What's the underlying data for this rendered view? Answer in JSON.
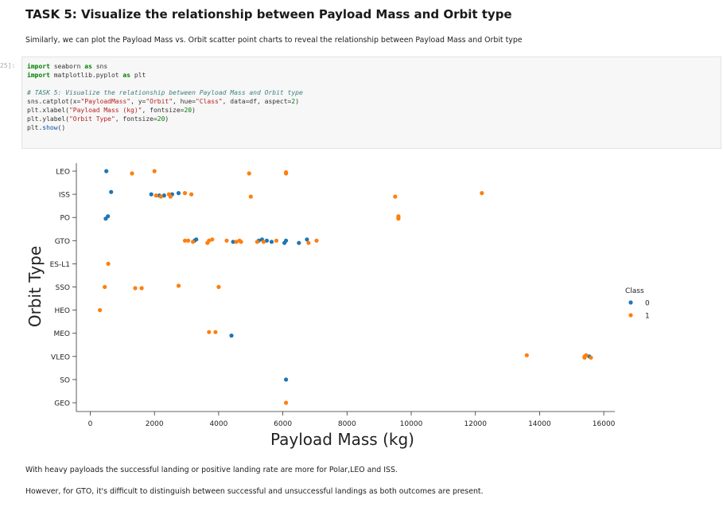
{
  "cell": {
    "heading": "TASK 5: Visualize the relationship between Payload Mass and Orbit type",
    "intro": "Similarly, we can plot the Payload Mass vs. Orbit scatter point charts to reveal the relationship between Payload Mass and Orbit type",
    "prompt": "25]:",
    "code": {
      "line1": {
        "kw1": "import",
        "mod": " seaborn ",
        "kw2": "as",
        "alias": " sns"
      },
      "line2": {
        "kw1": "import",
        "mod": " matplotlib.pyplot ",
        "kw2": "as",
        "alias": " plt"
      },
      "comment": "# TASK 5: Visualize the relationship between Payload Mass and Orbit type",
      "line4": {
        "a": "sns.catplot(x=",
        "b": "\"PayloadMass\"",
        "c": ", y=",
        "d": "\"Orbit\"",
        "e": ", hue=",
        "f": "\"Class\"",
        "g": ", data=df, aspect=",
        "h": "2",
        "i": ")"
      },
      "line5": {
        "a": "plt.xlabel(",
        "b": "\"Payload Mass (kg)\"",
        "c": ", fontsize=",
        "d": "20",
        "e": ")"
      },
      "line6": {
        "a": "plt.ylabel(",
        "b": "\"Orbit Type\"",
        "c": ", fontsize=",
        "d": "20",
        "e": ")"
      },
      "line7": {
        "a": "plt.",
        "b": "show",
        "c": "()"
      }
    },
    "conclusion1": "With heavy payloads the successful landing or positive landing rate are more for Polar,LEO and ISS.",
    "conclusion2": "However, for GTO, it's difficult to distinguish between successful and unsuccessful landings as both outcomes are present."
  },
  "chart_data": {
    "type": "scatter",
    "xlabel": "Payload Mass (kg)",
    "ylabel": "Orbit Type",
    "categories": [
      "LEO",
      "ISS",
      "PO",
      "GTO",
      "ES-L1",
      "SSO",
      "HEO",
      "MEO",
      "VLEO",
      "SO",
      "GEO"
    ],
    "xlim": [
      -400,
      16400
    ],
    "xticks": [
      0,
      2000,
      4000,
      6000,
      8000,
      10000,
      12000,
      14000,
      16000
    ],
    "legend": {
      "title": "Class",
      "placement": "right",
      "entries": [
        "0",
        "1"
      ]
    },
    "colors": {
      "0": "#1f77b4",
      "1": "#ff7f0e"
    },
    "series": [
      {
        "name": "0",
        "points": [
          [
            "LEO",
            500,
            0.0
          ],
          [
            "ISS",
            650,
            -0.1
          ],
          [
            "ISS",
            1900,
            0.0
          ],
          [
            "ISS",
            2150,
            0.05
          ],
          [
            "ISS",
            2300,
            0.05
          ],
          [
            "ISS",
            2550,
            0.0
          ],
          [
            "ISS",
            2750,
            -0.05
          ],
          [
            "PO",
            480,
            0.05
          ],
          [
            "PO",
            550,
            -0.05
          ],
          [
            "GTO",
            3250,
            0.0
          ],
          [
            "GTO",
            3300,
            -0.05
          ],
          [
            "GTO",
            4450,
            0.05
          ],
          [
            "GTO",
            5250,
            0.0
          ],
          [
            "GTO",
            5350,
            -0.05
          ],
          [
            "GTO",
            5500,
            0.0
          ],
          [
            "GTO",
            5650,
            0.05
          ],
          [
            "GTO",
            6050,
            0.1
          ],
          [
            "GTO",
            6100,
            0.0
          ],
          [
            "GTO",
            6500,
            0.1
          ],
          [
            "GTO",
            6750,
            -0.05
          ],
          [
            "MEO",
            4400,
            0.1
          ],
          [
            "VLEO",
            15550,
            0.0
          ],
          [
            "SO",
            6100,
            0.0
          ]
        ]
      },
      {
        "name": "1",
        "points": [
          [
            "LEO",
            1300,
            0.1
          ],
          [
            "LEO",
            2000,
            0.0
          ],
          [
            "LEO",
            4950,
            0.1
          ],
          [
            "LEO",
            6100,
            0.1
          ],
          [
            "LEO",
            6100,
            0.05
          ],
          [
            "ISS",
            2050,
            0.05
          ],
          [
            "ISS",
            2200,
            0.1
          ],
          [
            "ISS",
            2450,
            0.0
          ],
          [
            "ISS",
            2500,
            0.1
          ],
          [
            "ISS",
            2950,
            -0.05
          ],
          [
            "ISS",
            3150,
            0.0
          ],
          [
            "ISS",
            5000,
            0.1
          ],
          [
            "ISS",
            9500,
            0.1
          ],
          [
            "ISS",
            12200,
            -0.05
          ],
          [
            "PO",
            9600,
            0.05
          ],
          [
            "PO",
            9600,
            0.0
          ],
          [
            "PO",
            9600,
            -0.05
          ],
          [
            "GTO",
            2950,
            0.0
          ],
          [
            "GTO",
            3050,
            0.0
          ],
          [
            "GTO",
            3200,
            0.05
          ],
          [
            "GTO",
            3650,
            0.1
          ],
          [
            "GTO",
            3700,
            0.0
          ],
          [
            "GTO",
            3800,
            -0.05
          ],
          [
            "GTO",
            4250,
            0.0
          ],
          [
            "GTO",
            4550,
            0.05
          ],
          [
            "GTO",
            4650,
            0.0
          ],
          [
            "GTO",
            4700,
            0.05
          ],
          [
            "GTO",
            5200,
            0.05
          ],
          [
            "GTO",
            5400,
            0.05
          ],
          [
            "GTO",
            5800,
            0.0
          ],
          [
            "GTO",
            6800,
            0.1
          ],
          [
            "GTO",
            7050,
            0.0
          ],
          [
            "ES-L1",
            560,
            0.0
          ],
          [
            "SSO",
            450,
            0.0
          ],
          [
            "SSO",
            1400,
            0.05
          ],
          [
            "SSO",
            1600,
            0.05
          ],
          [
            "SSO",
            2750,
            -0.05
          ],
          [
            "SSO",
            4000,
            0.0
          ],
          [
            "HEO",
            300,
            0.0
          ],
          [
            "MEO",
            3700,
            -0.05
          ],
          [
            "MEO",
            3900,
            -0.05
          ],
          [
            "VLEO",
            13600,
            -0.05
          ],
          [
            "VLEO",
            15400,
            0.05
          ],
          [
            "VLEO",
            15400,
            0.0
          ],
          [
            "VLEO",
            15450,
            -0.05
          ],
          [
            "VLEO",
            15600,
            0.05
          ],
          [
            "GEO",
            6100,
            0.0
          ]
        ]
      }
    ]
  }
}
